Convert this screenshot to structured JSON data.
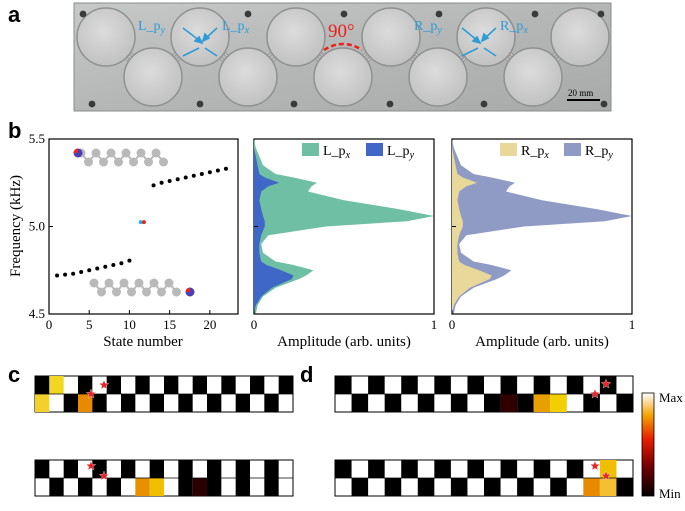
{
  "panels": {
    "a": "a",
    "b": "b",
    "c": "c",
    "d": "d"
  },
  "photo": {
    "labels": {
      "left_py": "L_p",
      "left_py_sub": "y",
      "left_px": "L_p",
      "left_px_sub": "x",
      "right_py": "R_p",
      "right_py_sub": "y",
      "right_px": "R_p",
      "right_px_sub": "x",
      "angle": "90°",
      "scale_bar": "20 mm"
    },
    "colors": {
      "label_blue": "#2e9bd6",
      "angle_red": "#e8211b"
    }
  },
  "chart_data": [
    {
      "type": "scatter",
      "xlabel": "State number",
      "ylabel": "Frequency (kHz)",
      "xlim": [
        0,
        23.5
      ],
      "ylim": [
        4.5,
        5.5
      ],
      "xticks": [
        "0",
        "5",
        "10",
        "15",
        "20"
      ],
      "yticks": [
        "4.5",
        "5.0",
        "5.5"
      ],
      "series": [
        {
          "color": "#000000",
          "x": [
            1,
            2,
            3,
            4,
            5,
            6,
            7,
            8,
            9,
            10
          ],
          "y": [
            4.72,
            4.725,
            4.73,
            4.74,
            4.75,
            4.76,
            4.77,
            4.78,
            4.79,
            4.805
          ]
        },
        {
          "color": "#000000",
          "x": [
            13,
            14,
            15,
            16,
            17,
            18,
            19,
            20,
            21,
            22
          ],
          "y": [
            5.235,
            5.25,
            5.26,
            5.27,
            5.28,
            5.29,
            5.3,
            5.31,
            5.32,
            5.33
          ]
        },
        {
          "color": "#21b4e0",
          "x": [
            11.4
          ],
          "y": [
            5.025
          ]
        },
        {
          "color": "#e5262b",
          "x": [
            11.8
          ],
          "y": [
            5.025
          ]
        }
      ]
    },
    {
      "type": "area",
      "xlabel": "Amplitude (arb. units)",
      "xticks": [
        "0",
        "1"
      ],
      "xlim": [
        0,
        1
      ],
      "ylim": [
        4.5,
        5.5
      ],
      "y": [
        4.5,
        4.55,
        4.6,
        4.65,
        4.7,
        4.72,
        4.75,
        4.78,
        4.8,
        4.85,
        4.9,
        4.95,
        5.0,
        5.03,
        5.06,
        5.1,
        5.15,
        5.2,
        5.23,
        5.25,
        5.28,
        5.3,
        5.35,
        5.4,
        5.45,
        5.5
      ],
      "series": [
        {
          "name": "L_p",
          "name_sub": "x",
          "color": "#6fbfa4",
          "values": [
            0.01,
            0.02,
            0.05,
            0.12,
            0.25,
            0.29,
            0.33,
            0.22,
            0.12,
            0.05,
            0.04,
            0.08,
            0.4,
            0.85,
            1.0,
            0.8,
            0.5,
            0.3,
            0.32,
            0.35,
            0.22,
            0.12,
            0.05,
            0.03,
            0.01,
            0.0
          ]
        },
        {
          "name": "L_p",
          "name_sub": "y",
          "color": "#3f67c8",
          "values": [
            0.0,
            0.01,
            0.04,
            0.1,
            0.21,
            0.22,
            0.15,
            0.07,
            0.04,
            0.03,
            0.03,
            0.04,
            0.06,
            0.06,
            0.05,
            0.04,
            0.03,
            0.04,
            0.08,
            0.14,
            0.06,
            0.03,
            0.02,
            0.01,
            0.0,
            0.0
          ]
        }
      ]
    },
    {
      "type": "area",
      "xlabel": "Amplitude (arb. units)",
      "xticks": [
        "0",
        "1"
      ],
      "xlim": [
        0,
        1
      ],
      "ylim": [
        4.5,
        5.5
      ],
      "y": [
        4.5,
        4.55,
        4.6,
        4.65,
        4.7,
        4.72,
        4.75,
        4.78,
        4.8,
        4.85,
        4.9,
        4.95,
        5.0,
        5.03,
        5.06,
        5.1,
        5.15,
        5.2,
        5.23,
        5.25,
        5.28,
        5.3,
        5.35,
        5.4,
        5.45,
        5.5
      ],
      "series": [
        {
          "name": "R_p",
          "name_sub": "x",
          "color": "#e8d89a",
          "values": [
            0.0,
            0.01,
            0.04,
            0.1,
            0.21,
            0.22,
            0.15,
            0.07,
            0.04,
            0.03,
            0.03,
            0.04,
            0.06,
            0.06,
            0.05,
            0.04,
            0.03,
            0.04,
            0.08,
            0.14,
            0.06,
            0.03,
            0.02,
            0.01,
            0.0,
            0.0
          ]
        },
        {
          "name": "R_p",
          "name_sub": "y",
          "color": "#8f9bc4",
          "values": [
            0.01,
            0.02,
            0.05,
            0.12,
            0.25,
            0.29,
            0.33,
            0.22,
            0.12,
            0.05,
            0.04,
            0.08,
            0.4,
            0.85,
            1.0,
            0.8,
            0.5,
            0.3,
            0.32,
            0.35,
            0.22,
            0.12,
            0.05,
            0.03,
            0.01,
            0.0
          ]
        }
      ]
    }
  ],
  "heatmaps": {
    "colorbar": {
      "max_label": "Max",
      "min_label": "Min"
    },
    "c_top": {
      "top": [
        "#000000",
        "#f5e93a",
        "#ffffff",
        "#000000",
        "#7a0a00",
        "#e8a000",
        "#000000",
        "#ffffff",
        "#1e0000",
        "#ffffff",
        "#000000",
        "#ffffff",
        "#000000",
        "#ffffff",
        "#000000",
        "#ffffff",
        "#000000",
        "#ffffff"
      ],
      "bottom": [
        "#f2d12a",
        "#000000",
        "#ffffff",
        "#e87a00",
        "#000000",
        "#ffffff",
        "#000000",
        "#ffffff",
        "#000000",
        "#ffffff",
        "#000000",
        "#ffffff",
        "#000000",
        "#ffffff",
        "#000000",
        "#ffffff",
        "#000000",
        "#ffffff"
      ]
    },
    "c_bottom": {
      "top": [
        "#000000",
        "#ffffff",
        "#000000",
        "#ffffff",
        "#000000",
        "#ffffff",
        "#000000",
        "#ffffff",
        "#000000",
        "#ffffff",
        "#000000",
        "#ffffff",
        "#000000",
        "#ffffff",
        "#000000",
        "#ffffff",
        "#000000",
        "#ffffff"
      ]
    },
    "d_top": {
      "top": [
        "#000000",
        "#ffffff",
        "#000000",
        "#ffffff",
        "#000000",
        "#ffffff",
        "#000000",
        "#ffffff",
        "#000000",
        "#ffffff",
        "#000000",
        "#ffffff",
        "#000000",
        "#ffffff",
        "#000000",
        "#ffffff",
        "#000000",
        "#ffffff"
      ]
    },
    "d_bottom": {
      "top": [
        "#000000",
        "#ffffff",
        "#000000",
        "#ffffff",
        "#000000",
        "#ffffff",
        "#000000",
        "#ffffff",
        "#000000",
        "#ffffff",
        "#000000",
        "#ffffff",
        "#000000",
        "#ffffff",
        "#000000",
        "#ffffff",
        "#000000",
        "#ffffff"
      ]
    }
  }
}
